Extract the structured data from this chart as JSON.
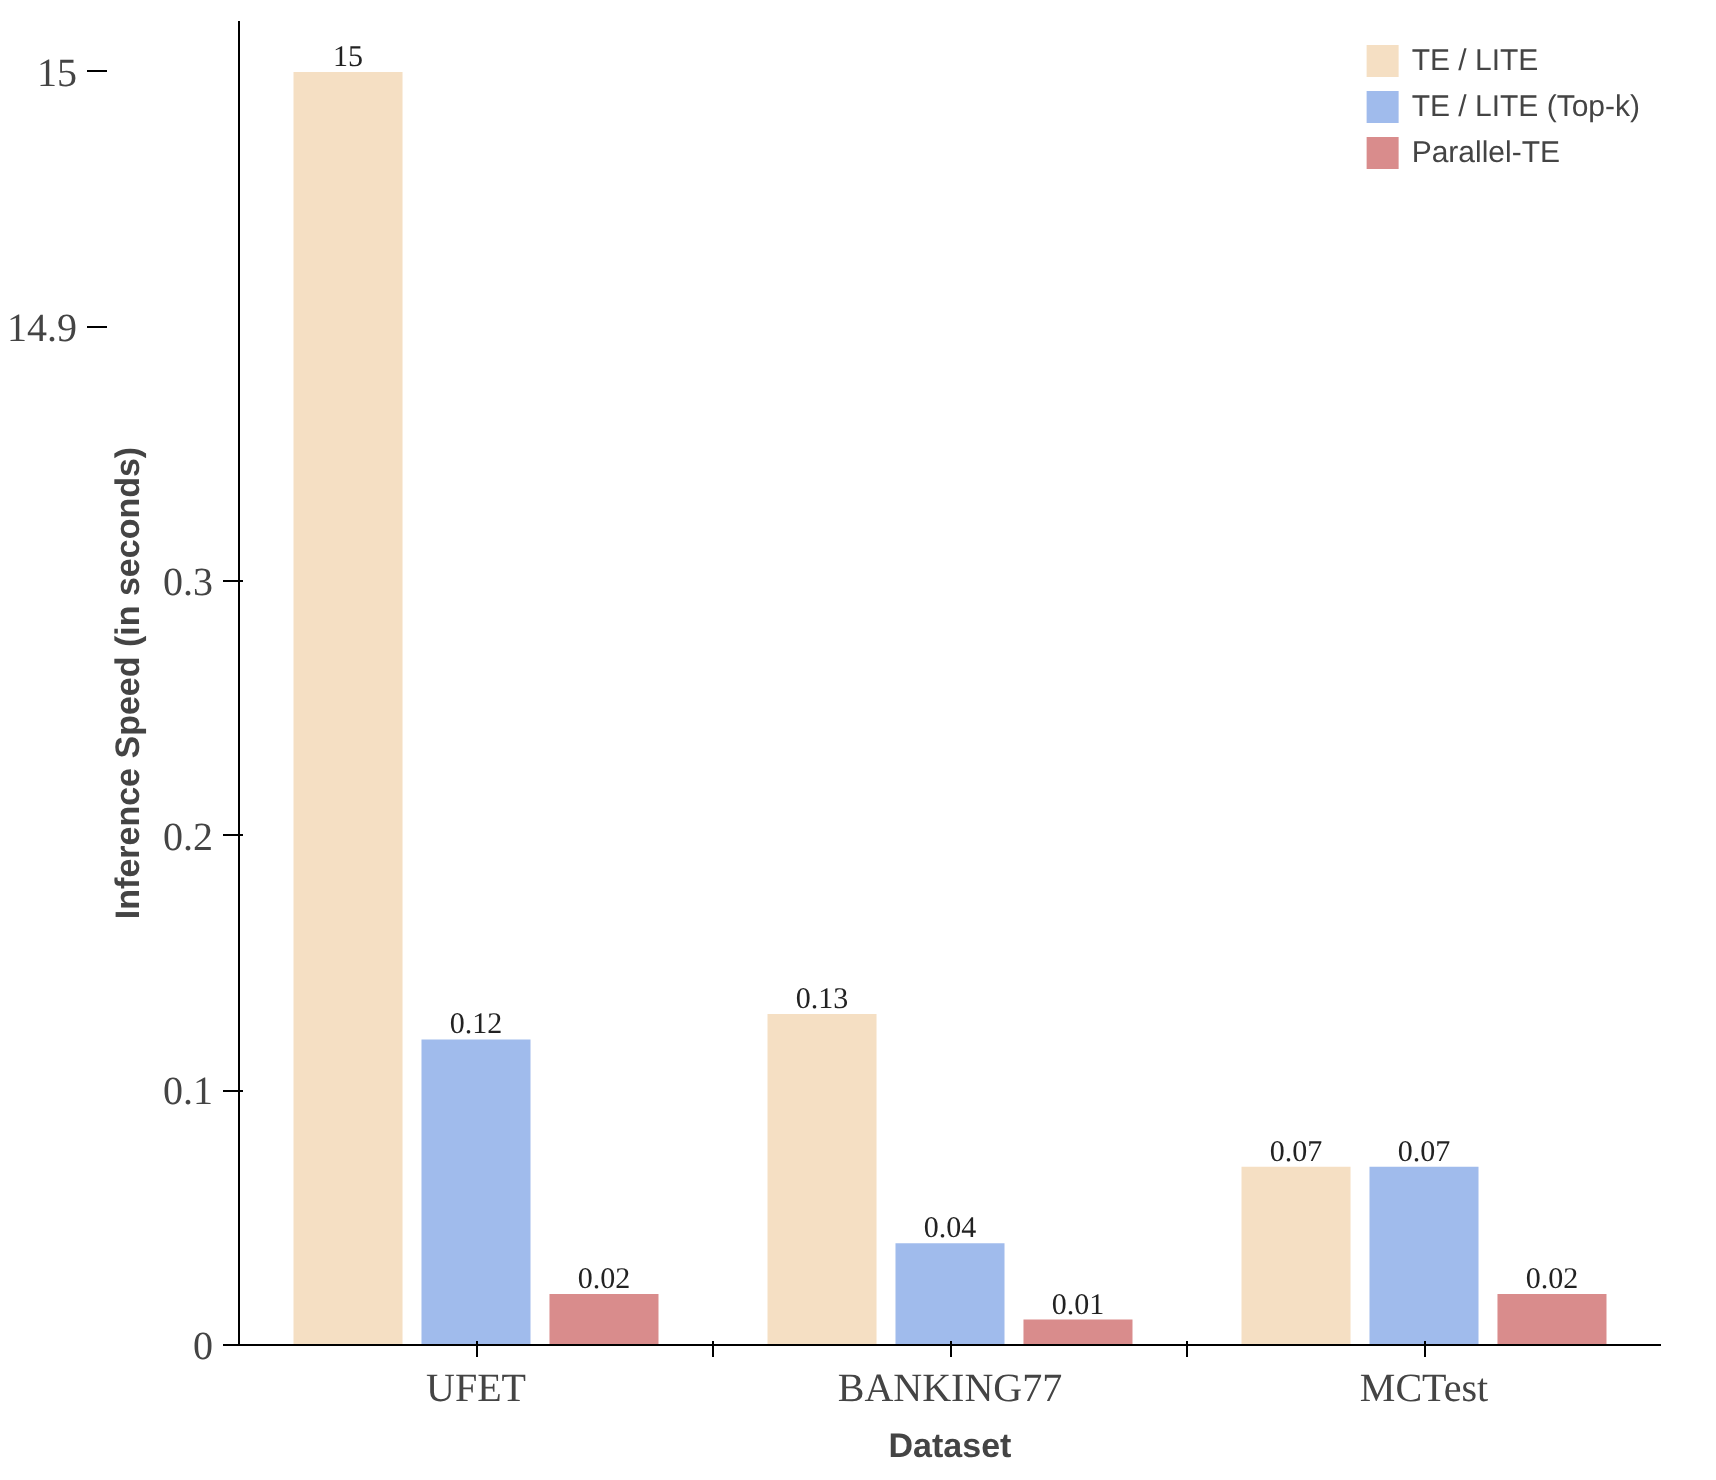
{
  "chart_data": {
    "type": "bar",
    "categories": [
      "UFET",
      "BANKING77",
      "MCTest"
    ],
    "xlabel": "Dataset",
    "ylabel": "Inference Speed (in seconds)",
    "ylim": [
      0,
      0.52
    ],
    "yticks": [
      0,
      0.1,
      0.2,
      0.3
    ],
    "y2lim": [
      14.5,
      15.02
    ],
    "y2ticks": [
      14.9,
      15
    ],
    "grid": false,
    "legend": "top right",
    "data_labels": true,
    "series": [
      {
        "name": "TE / LITE",
        "color": "#f5dfc3",
        "values": [
          null,
          0.13,
          0.07
        ]
      },
      {
        "name": "TE / LITE (Top-k)",
        "color": "#a0bbec",
        "values": [
          0.12,
          0.04,
          0.07
        ]
      },
      {
        "name": "Parallel-TE",
        "color": "#d98c8c",
        "values": [
          0.02,
          0.01,
          0.02
        ]
      },
      {
        "color": "#f5dfc3",
        "axis": "y2",
        "values": [
          15,
          null,
          null
        ]
      }
    ]
  }
}
